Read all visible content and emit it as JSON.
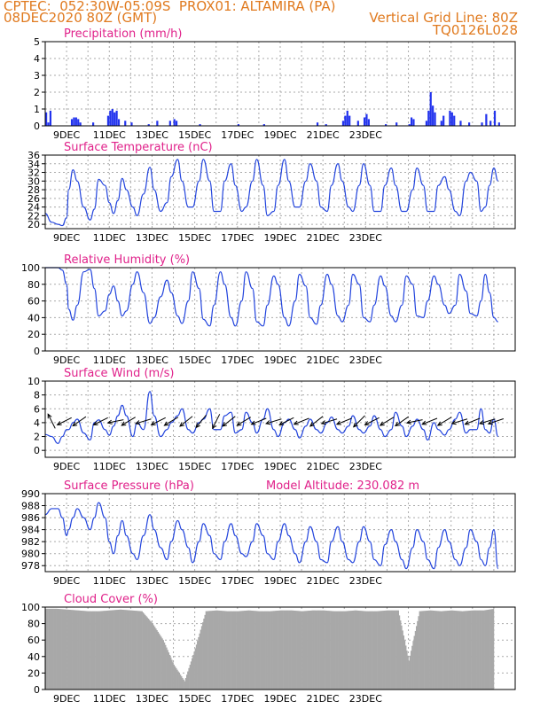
{
  "header": {
    "line1": "CPTEC:  052:30W-05:09S  PROX01: ALTAMIRA (PA)",
    "line2": "08DEC2020 80Z (GMT)",
    "grid_note": "Vertical Grid Line: 80Z",
    "code": "TQ0126L028"
  },
  "chart_data": [
    {
      "type": "bar",
      "title": "Precipitation (mm/h)",
      "ylim": [
        0,
        5
      ],
      "yticks": [
        0,
        1,
        2,
        3,
        4,
        5
      ],
      "xlabels": [
        "9DEC",
        "11DEC",
        "13DEC",
        "15DEC",
        "17DEC",
        "19DEC",
        "21DEC",
        "23DEC"
      ],
      "color": "#2233ee",
      "bars": [
        {
          "x": 0.0,
          "v": 0.8
        },
        {
          "x": 0.1,
          "v": 0.2
        },
        {
          "x": 0.2,
          "v": 0.9
        },
        {
          "x": 1.2,
          "v": 0.4
        },
        {
          "x": 1.3,
          "v": 0.5
        },
        {
          "x": 1.4,
          "v": 0.5
        },
        {
          "x": 1.5,
          "v": 0.4
        },
        {
          "x": 1.6,
          "v": 0.2
        },
        {
          "x": 2.2,
          "v": 0.2
        },
        {
          "x": 2.9,
          "v": 0.6
        },
        {
          "x": 3.0,
          "v": 0.9
        },
        {
          "x": 3.1,
          "v": 1.0
        },
        {
          "x": 3.2,
          "v": 0.8
        },
        {
          "x": 3.3,
          "v": 0.9
        },
        {
          "x": 3.4,
          "v": 0.4
        },
        {
          "x": 3.7,
          "v": 0.3
        },
        {
          "x": 4.0,
          "v": 0.2
        },
        {
          "x": 4.8,
          "v": 0.1
        },
        {
          "x": 5.2,
          "v": 0.3
        },
        {
          "x": 5.8,
          "v": 0.3
        },
        {
          "x": 6.0,
          "v": 0.4
        },
        {
          "x": 6.1,
          "v": 0.3
        },
        {
          "x": 7.2,
          "v": 0.1
        },
        {
          "x": 9.0,
          "v": 0.1
        },
        {
          "x": 10.2,
          "v": 0.1
        },
        {
          "x": 12.7,
          "v": 0.2
        },
        {
          "x": 13.1,
          "v": 0.1
        },
        {
          "x": 13.9,
          "v": 0.3
        },
        {
          "x": 14.0,
          "v": 0.6
        },
        {
          "x": 14.1,
          "v": 0.9
        },
        {
          "x": 14.2,
          "v": 0.6
        },
        {
          "x": 14.6,
          "v": 0.3
        },
        {
          "x": 14.9,
          "v": 0.5
        },
        {
          "x": 15.0,
          "v": 0.7
        },
        {
          "x": 15.1,
          "v": 0.4
        },
        {
          "x": 15.9,
          "v": 0.1
        },
        {
          "x": 16.4,
          "v": 0.2
        },
        {
          "x": 17.0,
          "v": 0.1
        },
        {
          "x": 17.1,
          "v": 0.5
        },
        {
          "x": 17.2,
          "v": 0.4
        },
        {
          "x": 17.8,
          "v": 0.3
        },
        {
          "x": 17.9,
          "v": 0.9
        },
        {
          "x": 18.0,
          "v": 2.0
        },
        {
          "x": 18.1,
          "v": 1.2
        },
        {
          "x": 18.2,
          "v": 0.8
        },
        {
          "x": 18.5,
          "v": 0.3
        },
        {
          "x": 18.6,
          "v": 0.6
        },
        {
          "x": 18.9,
          "v": 0.9
        },
        {
          "x": 19.0,
          "v": 0.8
        },
        {
          "x": 19.1,
          "v": 0.6
        },
        {
          "x": 19.4,
          "v": 0.3
        },
        {
          "x": 19.8,
          "v": 0.2
        },
        {
          "x": 20.4,
          "v": 0.2
        },
        {
          "x": 20.6,
          "v": 0.7
        },
        {
          "x": 20.8,
          "v": 0.3
        },
        {
          "x": 21.0,
          "v": 0.9
        },
        {
          "x": 21.2,
          "v": 0.2
        }
      ]
    },
    {
      "type": "line",
      "title": "Surface Temperature (nC)",
      "ylim": [
        19,
        36
      ],
      "yticks": [
        20,
        22,
        24,
        26,
        28,
        30,
        32,
        34,
        36
      ],
      "xlabels": [
        "9DEC",
        "11DEC",
        "13DEC",
        "15DEC",
        "17DEC",
        "19DEC",
        "21DEC",
        "23DEC"
      ],
      "color": "#2244dd",
      "x": [
        0.0,
        0.3,
        0.6,
        0.8,
        1.0,
        1.1,
        1.3,
        1.5,
        1.8,
        2.1,
        2.3,
        2.5,
        2.8,
        3.0,
        3.2,
        3.4,
        3.6,
        3.8,
        4.1,
        4.3,
        4.6,
        4.9,
        5.1,
        5.4,
        5.7,
        5.9,
        6.2,
        6.4,
        6.7,
        6.9,
        7.2,
        7.4,
        7.7,
        7.9,
        8.2,
        8.4,
        8.7,
        8.9,
        9.2,
        9.4,
        9.7,
        9.9,
        10.2,
        10.4,
        10.7,
        10.9,
        11.2,
        11.4,
        11.7,
        11.9,
        12.2,
        12.4,
        12.7,
        12.9,
        13.2,
        13.4,
        13.7,
        13.9,
        14.2,
        14.4,
        14.7,
        14.9,
        15.2,
        15.4,
        15.7,
        15.9,
        16.2,
        16.4,
        16.7,
        16.9,
        17.2,
        17.4,
        17.7,
        17.9,
        18.2,
        18.4,
        18.7,
        18.9,
        19.2,
        19.4,
        19.7,
        19.9,
        20.2,
        20.4,
        20.6,
        20.8,
        21.0,
        21.2
      ],
      "y": [
        22.5,
        20.5,
        20.0,
        19.7,
        21.5,
        28,
        32.6,
        30,
        24,
        21,
        23.5,
        30.4,
        29,
        25,
        22.5,
        25.5,
        30.6,
        28,
        24,
        22,
        27,
        33.2,
        28,
        23,
        25,
        31,
        35,
        30,
        24,
        24,
        30,
        35,
        30,
        23,
        23,
        30,
        34,
        29,
        23,
        24,
        30,
        35,
        29,
        22,
        23,
        29,
        35,
        30,
        24,
        24,
        30,
        34,
        30,
        24,
        23,
        29,
        34,
        30,
        24,
        23,
        29,
        34,
        29,
        23,
        23,
        29,
        33,
        29,
        23,
        23,
        28,
        33,
        29,
        23,
        23,
        29,
        31,
        28,
        23,
        22,
        30,
        32,
        30,
        23,
        24,
        29,
        33,
        30
      ]
    },
    {
      "type": "line",
      "title": "Relative Humidity (%)",
      "ylim": [
        0,
        100
      ],
      "yticks": [
        0,
        20,
        40,
        60,
        80,
        100
      ],
      "xlabels": [
        "9DEC",
        "11DEC",
        "13DEC",
        "15DEC",
        "17DEC",
        "19DEC",
        "21DEC",
        "23DEC"
      ],
      "color": "#2244dd",
      "x": [
        0.0,
        0.3,
        0.6,
        0.8,
        1.0,
        1.1,
        1.3,
        1.5,
        1.8,
        2.1,
        2.3,
        2.5,
        2.8,
        3.0,
        3.2,
        3.4,
        3.6,
        3.8,
        4.1,
        4.3,
        4.6,
        4.9,
        5.1,
        5.4,
        5.7,
        5.9,
        6.2,
        6.4,
        6.7,
        6.9,
        7.2,
        7.4,
        7.7,
        7.9,
        8.2,
        8.4,
        8.7,
        8.9,
        9.2,
        9.4,
        9.7,
        9.9,
        10.2,
        10.4,
        10.7,
        10.9,
        11.2,
        11.4,
        11.7,
        11.9,
        12.2,
        12.4,
        12.7,
        12.9,
        13.2,
        13.4,
        13.7,
        13.9,
        14.2,
        14.4,
        14.7,
        14.9,
        15.2,
        15.4,
        15.7,
        15.9,
        16.2,
        16.4,
        16.7,
        16.9,
        17.2,
        17.4,
        17.7,
        17.9,
        18.2,
        18.4,
        18.7,
        18.9,
        19.2,
        19.4,
        19.7,
        19.9,
        20.2,
        20.4,
        20.6,
        20.8,
        21.0,
        21.2
      ],
      "y": [
        100,
        100,
        100,
        97,
        80,
        50,
        37,
        55,
        95,
        98,
        75,
        42,
        48,
        68,
        78,
        60,
        42,
        48,
        80,
        95,
        70,
        33,
        40,
        65,
        85,
        70,
        42,
        33,
        60,
        95,
        75,
        38,
        30,
        55,
        95,
        80,
        40,
        30,
        60,
        95,
        75,
        35,
        30,
        55,
        90,
        80,
        40,
        30,
        60,
        92,
        78,
        40,
        32,
        55,
        92,
        80,
        42,
        35,
        55,
        92,
        80,
        40,
        35,
        55,
        90,
        78,
        42,
        35,
        55,
        90,
        80,
        42,
        40,
        60,
        90,
        80,
        55,
        45,
        55,
        92,
        72,
        45,
        42,
        60,
        92,
        70,
        40,
        35
      ]
    },
    {
      "type": "line",
      "title": "Surface Wind (m/s)",
      "ylim": [
        -1,
        10
      ],
      "yticks": [
        0,
        2,
        4,
        6,
        8,
        10
      ],
      "xlabels": [
        "9DEC",
        "11DEC",
        "13DEC",
        "15DEC",
        "17DEC",
        "19DEC",
        "21DEC",
        "23DEC"
      ],
      "color": "#2244dd",
      "x": [
        0.0,
        0.3,
        0.6,
        0.8,
        1.0,
        1.1,
        1.3,
        1.5,
        1.8,
        2.1,
        2.3,
        2.5,
        2.8,
        3.0,
        3.2,
        3.4,
        3.6,
        3.8,
        4.1,
        4.3,
        4.6,
        4.9,
        5.1,
        5.4,
        5.7,
        5.9,
        6.2,
        6.4,
        6.7,
        6.9,
        7.2,
        7.4,
        7.7,
        7.9,
        8.2,
        8.4,
        8.7,
        8.9,
        9.2,
        9.4,
        9.7,
        9.9,
        10.2,
        10.4,
        10.7,
        10.9,
        11.2,
        11.4,
        11.7,
        11.9,
        12.2,
        12.4,
        12.7,
        12.9,
        13.2,
        13.4,
        13.7,
        13.9,
        14.2,
        14.4,
        14.7,
        14.9,
        15.2,
        15.4,
        15.7,
        15.9,
        16.2,
        16.4,
        16.7,
        16.9,
        17.2,
        17.4,
        17.7,
        17.9,
        18.2,
        18.4,
        18.7,
        18.9,
        19.2,
        19.4,
        19.7,
        19.9,
        20.2,
        20.4,
        20.6,
        20.8,
        21.0,
        21.2
      ],
      "y": [
        2.3,
        2.0,
        1.0,
        2.0,
        3.0,
        3.0,
        4.0,
        4.5,
        2.5,
        1.5,
        4.0,
        4.4,
        3.0,
        2.2,
        3.5,
        5.0,
        6.5,
        5.0,
        2.0,
        4.0,
        3.0,
        8.5,
        5.0,
        2.0,
        3.0,
        4.0,
        5.0,
        6.0,
        3.0,
        2.5,
        4.0,
        4.5,
        6.0,
        3.0,
        3.0,
        5.0,
        5.5,
        2.5,
        3.0,
        5.5,
        4.0,
        2.5,
        4.5,
        6.0,
        3.0,
        2.0,
        4.0,
        4.5,
        3.0,
        1.8,
        3.5,
        4.5,
        3.0,
        2.5,
        4.0,
        4.8,
        3.0,
        2.5,
        3.5,
        5.0,
        3.0,
        2.5,
        3.5,
        5.0,
        3.0,
        2.0,
        3.0,
        5.5,
        3.5,
        2.0,
        3.5,
        4.5,
        3.0,
        1.5,
        4.0,
        3.0,
        2.2,
        3.0,
        4.5,
        5.5,
        2.5,
        3.0,
        3.0,
        6.0,
        3.0,
        2.5,
        4.5,
        2.0
      ],
      "arrows": [
        {
          "x": 0.3,
          "u": -0.4,
          "v": 0.8
        },
        {
          "x": 0.9,
          "u": -1.0,
          "v": -0.5
        },
        {
          "x": 1.6,
          "u": -1.0,
          "v": -0.7
        },
        {
          "x": 2.6,
          "u": -1.0,
          "v": -0.5
        },
        {
          "x": 3.3,
          "u": -1.0,
          "v": -0.2
        },
        {
          "x": 3.9,
          "u": -1.0,
          "v": -0.6
        },
        {
          "x": 4.6,
          "u": -1.0,
          "v": -0.3
        },
        {
          "x": 5.3,
          "u": -1.0,
          "v": -0.5
        },
        {
          "x": 5.9,
          "u": -1.0,
          "v": -0.6
        },
        {
          "x": 6.6,
          "u": -1.0,
          "v": -0.8
        },
        {
          "x": 7.3,
          "u": -0.8,
          "v": -1.0
        },
        {
          "x": 8.0,
          "u": -0.5,
          "v": -1.0
        },
        {
          "x": 8.6,
          "u": -0.9,
          "v": -0.7
        },
        {
          "x": 9.3,
          "u": -1.0,
          "v": -0.6
        },
        {
          "x": 10.0,
          "u": -1.0,
          "v": -0.4
        },
        {
          "x": 10.7,
          "u": -1.0,
          "v": -0.3
        },
        {
          "x": 11.3,
          "u": -1.0,
          "v": -0.5
        },
        {
          "x": 12.0,
          "u": -1.0,
          "v": -0.4
        },
        {
          "x": 12.7,
          "u": -0.9,
          "v": -0.7
        },
        {
          "x": 13.3,
          "u": -1.0,
          "v": -0.3
        },
        {
          "x": 14.0,
          "u": -1.0,
          "v": -0.4
        },
        {
          "x": 14.7,
          "u": -0.8,
          "v": -0.8
        },
        {
          "x": 15.3,
          "u": -1.0,
          "v": -0.5
        },
        {
          "x": 16.0,
          "u": -1.0,
          "v": -0.6
        },
        {
          "x": 16.7,
          "u": -1.0,
          "v": -0.7
        },
        {
          "x": 17.3,
          "u": -1.0,
          "v": -0.2
        },
        {
          "x": 18.0,
          "u": -1.0,
          "v": -0.4
        },
        {
          "x": 18.7,
          "u": -1.0,
          "v": -0.6
        },
        {
          "x": 19.4,
          "u": -1.0,
          "v": -0.3
        },
        {
          "x": 20.0,
          "u": -1.0,
          "v": -0.4
        },
        {
          "x": 20.7,
          "u": -1.0,
          "v": -0.3
        },
        {
          "x": 21.1,
          "u": -0.6,
          "v": -0.2
        }
      ]
    },
    {
      "type": "line",
      "title": "Surface Pressure (hPa)",
      "annotation": "Model Altitude: 230.082 m",
      "ylim": [
        977,
        990
      ],
      "yticks": [
        978,
        980,
        982,
        984,
        986,
        988,
        990
      ],
      "xlabels": [
        "9DEC",
        "11DEC",
        "13DEC",
        "15DEC",
        "17DEC",
        "19DEC",
        "21DEC",
        "23DEC"
      ],
      "color": "#2244dd",
      "x": [
        0.0,
        0.3,
        0.6,
        0.8,
        1.0,
        1.1,
        1.3,
        1.5,
        1.8,
        2.1,
        2.3,
        2.5,
        2.8,
        3.0,
        3.2,
        3.4,
        3.6,
        3.8,
        4.1,
        4.3,
        4.6,
        4.9,
        5.1,
        5.4,
        5.7,
        5.9,
        6.2,
        6.4,
        6.7,
        6.9,
        7.2,
        7.4,
        7.7,
        7.9,
        8.2,
        8.4,
        8.7,
        8.9,
        9.2,
        9.4,
        9.7,
        9.9,
        10.2,
        10.4,
        10.7,
        10.9,
        11.2,
        11.4,
        11.7,
        11.9,
        12.2,
        12.4,
        12.7,
        12.9,
        13.2,
        13.4,
        13.7,
        13.9,
        14.2,
        14.4,
        14.7,
        14.9,
        15.2,
        15.4,
        15.7,
        15.9,
        16.2,
        16.4,
        16.7,
        16.9,
        17.2,
        17.4,
        17.7,
        17.9,
        18.2,
        18.4,
        18.7,
        18.9,
        19.2,
        19.4,
        19.7,
        19.9,
        20.2,
        20.4,
        20.6,
        20.8,
        21.0,
        21.2
      ],
      "y": [
        986.5,
        987.5,
        987.5,
        986,
        983,
        984,
        986,
        987.5,
        986,
        984,
        986,
        988.5,
        986,
        982,
        980,
        983,
        985.5,
        983,
        980,
        979,
        983,
        986.5,
        984,
        981,
        979,
        982,
        985.5,
        984,
        981,
        978.5,
        982,
        985,
        983,
        980,
        979,
        982,
        985,
        983,
        980,
        979.5,
        982,
        985,
        983,
        980,
        979,
        982,
        985,
        983,
        980,
        978.5,
        982,
        984.5,
        982,
        979,
        978.5,
        982,
        984.5,
        982,
        979,
        978.5,
        982,
        984.5,
        982,
        979,
        978,
        981.5,
        984,
        982,
        979,
        977.5,
        981,
        984,
        982,
        979,
        977.5,
        981,
        984,
        982,
        979,
        978,
        981,
        984,
        982,
        979,
        978,
        981,
        984,
        977.5
      ]
    },
    {
      "type": "area",
      "title": "Cloud Cover (%)",
      "ylim": [
        0,
        100
      ],
      "yticks": [
        0,
        20,
        40,
        60,
        80,
        100
      ],
      "xlabels": [
        "9DEC",
        "11DEC",
        "13DEC",
        "15DEC",
        "17DEC",
        "19DEC",
        "21DEC",
        "23DEC"
      ],
      "color": "#a8a8a8",
      "x": [
        0.0,
        0.5,
        1.0,
        1.5,
        2.0,
        2.5,
        3.0,
        3.5,
        4.0,
        4.5,
        5.0,
        5.5,
        6.0,
        6.5,
        7.0,
        7.5,
        8.0,
        8.5,
        9.0,
        9.5,
        10.0,
        10.5,
        11.0,
        11.5,
        12.0,
        12.5,
        13.0,
        13.5,
        14.0,
        14.5,
        15.0,
        15.5,
        16.0,
        16.5,
        17.0,
        17.5,
        18.0,
        18.5,
        19.0,
        19.5,
        20.0,
        20.5,
        21.0
      ],
      "y": [
        98,
        98,
        97,
        96,
        95,
        95,
        96,
        97,
        96,
        95,
        80,
        60,
        30,
        10,
        50,
        95,
        96,
        95,
        95,
        96,
        95,
        95,
        96,
        96,
        95,
        96,
        96,
        95,
        95,
        96,
        95,
        95,
        96,
        96,
        35,
        95,
        96,
        95,
        96,
        95,
        96,
        96,
        98
      ]
    }
  ]
}
